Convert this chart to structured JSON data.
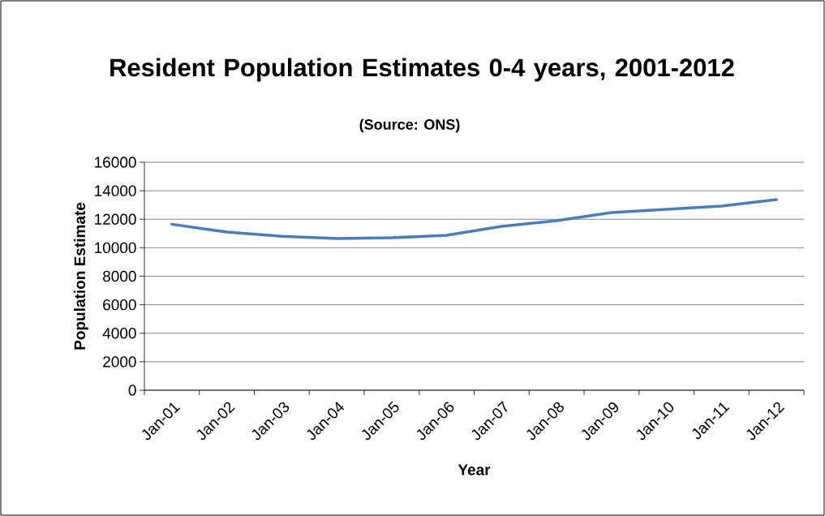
{
  "chart_data": {
    "type": "line",
    "title": "Resident Population Estimates 0-4 years, 2001-2012",
    "subtitle": "(Source: ONS)",
    "xlabel": "Year",
    "ylabel": "Population Estimate",
    "categories": [
      "Jan-01",
      "Jan-02",
      "Jan-03",
      "Jan-04",
      "Jan-05",
      "Jan-06",
      "Jan-07",
      "Jan-08",
      "Jan-09",
      "Jan-10",
      "Jan-11",
      "Jan-12"
    ],
    "series": [
      {
        "color": "#4a7ebb",
        "values": [
          11650,
          11100,
          10800,
          10650,
          10700,
          10870,
          11500,
          11900,
          12470,
          12700,
          12930,
          13380
        ]
      }
    ],
    "ylim": [
      0,
      16000
    ],
    "yticks": [
      0,
      2000,
      4000,
      6000,
      8000,
      10000,
      12000,
      14000,
      16000
    ],
    "grid": "y",
    "marker": "none",
    "line_style": "solid"
  }
}
